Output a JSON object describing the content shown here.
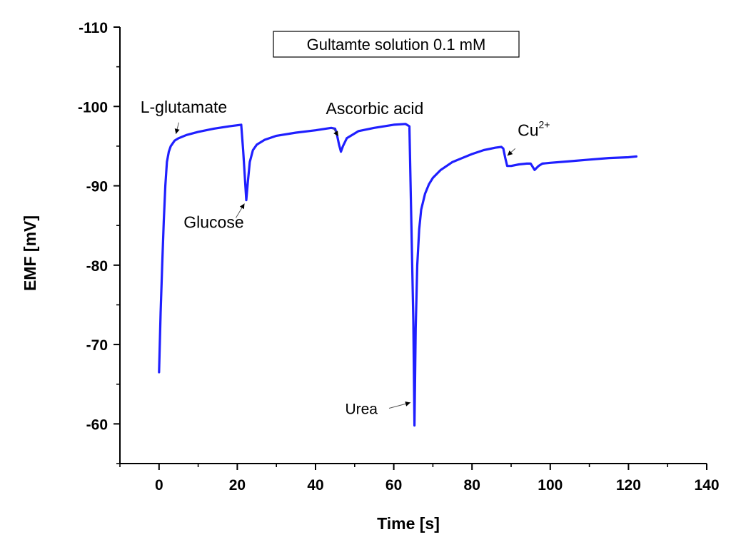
{
  "chart_data": {
    "type": "line",
    "title": "Gultamte solution 0.1 mM",
    "xlabel": "Time [s]",
    "ylabel": "EMF [mV]",
    "xlim": [
      -10,
      140
    ],
    "ylim": [
      -55,
      -110
    ],
    "x_ticks": [
      0,
      20,
      40,
      60,
      80,
      100,
      120,
      140
    ],
    "y_ticks": [
      -60,
      -70,
      -80,
      -90,
      -100,
      -110
    ],
    "grid": false,
    "line_color": "#1f1fff",
    "series": [
      {
        "x": [
          0,
          0.4,
          0.8,
          1.2,
          1.6,
          2.0,
          2.5,
          3,
          4,
          5,
          7,
          10,
          14,
          18,
          21,
          21.5,
          22,
          22.3,
          22.7,
          23.2,
          24,
          25,
          27,
          30,
          35,
          40,
          44,
          45,
          45.5,
          46,
          46.5,
          47,
          48,
          50,
          51,
          52,
          55,
          60,
          63,
          64,
          64.5,
          65,
          65.3,
          65.6,
          66,
          66.5,
          67,
          68,
          69,
          70,
          72,
          75,
          77,
          80,
          83,
          86,
          87.5,
          88,
          88.5,
          89,
          90,
          92,
          94,
          95,
          95.5,
          96,
          97,
          98,
          100,
          105,
          110,
          115,
          120,
          122
        ],
        "y": [
          -66.5,
          -74,
          -80,
          -85.5,
          -90,
          -93,
          -94.3,
          -95,
          -95.7,
          -96,
          -96.4,
          -96.8,
          -97.2,
          -97.5,
          -97.7,
          -94.5,
          -90.5,
          -88.2,
          -90.5,
          -93,
          -94.5,
          -95.2,
          -95.8,
          -96.3,
          -96.7,
          -97,
          -97.3,
          -97.2,
          -96.4,
          -95.2,
          -94.3,
          -95,
          -96,
          -96.6,
          -96.9,
          -97,
          -97.3,
          -97.7,
          -97.8,
          -97.5,
          -85,
          -73,
          -59.8,
          -72,
          -80,
          -84.5,
          -87,
          -89,
          -90.2,
          -91,
          -92,
          -93,
          -93.4,
          -94,
          -94.5,
          -94.8,
          -94.9,
          -94.7,
          -93.5,
          -92.5,
          -92.5,
          -92.7,
          -92.8,
          -92.8,
          -92.4,
          -92.0,
          -92.5,
          -92.8,
          -92.9,
          -93.1,
          -93.3,
          -93.5,
          -93.6,
          -93.7
        ]
      }
    ],
    "annotations": [
      {
        "text": "L-glutamate",
        "x": 4.5,
        "y": -96
      },
      {
        "text": "Glucose",
        "x": 22.2,
        "y": -88.3
      },
      {
        "text": "Ascorbic acid",
        "x": 46,
        "y": -95.8
      },
      {
        "text": "Urea",
        "x": 65,
        "y": -62.5
      },
      {
        "text": "Cu",
        "superscript": "2+",
        "x": 88.5,
        "y": -92.9
      }
    ]
  }
}
